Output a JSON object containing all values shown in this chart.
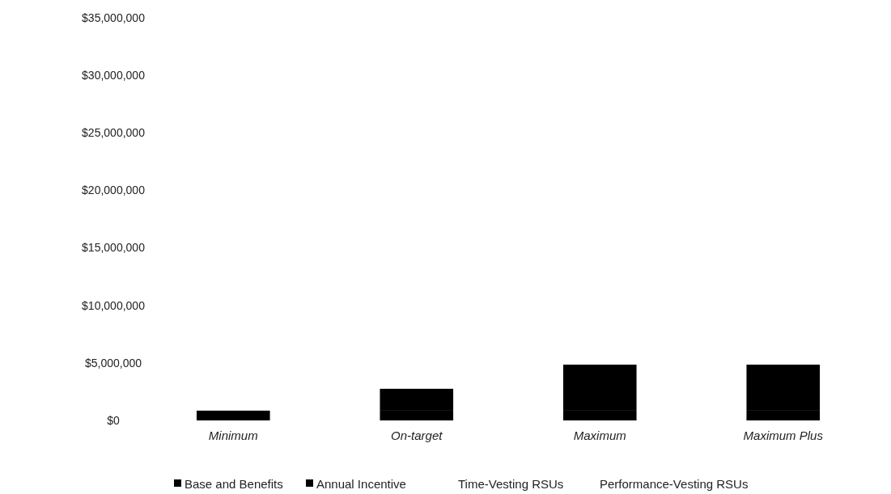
{
  "chart_data": {
    "type": "bar",
    "stacked": true,
    "categories": [
      "Minimum",
      "On-target",
      "Maximum",
      "Maximum Plus"
    ],
    "series": [
      {
        "name": "Base and Benefits",
        "color": "#000000",
        "values": [
          850000,
          850000,
          850000,
          850000
        ]
      },
      {
        "name": "Annual Incentive",
        "color": "#000000",
        "values": [
          0,
          1900000,
          4000000,
          4000000
        ]
      },
      {
        "name": "Time-Vesting RSUs",
        "values": [
          0,
          0,
          0,
          0
        ]
      },
      {
        "name": "Performance-Vesting RSUs",
        "values": [
          0,
          0,
          0,
          0
        ]
      }
    ],
    "ylim": [
      0,
      35000000
    ],
    "yticks": [
      {
        "value": 0,
        "label": "$0"
      },
      {
        "value": 5000000,
        "label": "$5,000,000"
      },
      {
        "value": 10000000,
        "label": "$10,000,000"
      },
      {
        "value": 15000000,
        "label": "$15,000,000"
      },
      {
        "value": 20000000,
        "label": "$20,000,000"
      },
      {
        "value": 25000000,
        "label": "$25,000,000"
      },
      {
        "value": 30000000,
        "label": "$30,000,000"
      },
      {
        "value": 35000000,
        "label": "$35,000,000"
      }
    ],
    "grid": false,
    "legend": "bottom"
  }
}
